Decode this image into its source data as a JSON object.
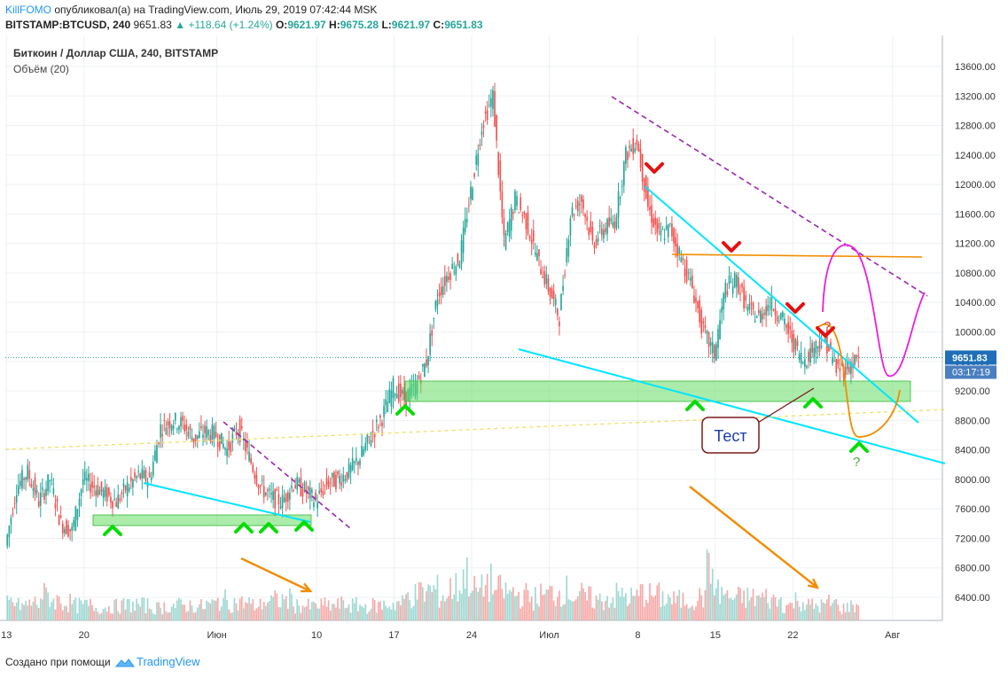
{
  "header": {
    "author": "KillFOMO",
    "published": "опубликовал(а) на TradingView.com, Июль 29, 2019 07:42:44 MSK",
    "symbol": "BITSTAMP:BTCUSD, 240",
    "last": "9651.83",
    "change": "+118.64 (+1.24%)",
    "o_label": "O:",
    "o": "9621.97",
    "h_label": "H:",
    "h": "9675.28",
    "l_label": "L:",
    "l": "9621.97",
    "c_label": "C:",
    "c": "9651.83"
  },
  "legend": {
    "series": "Биткоин / Доллар США, 240, BITSTAMP",
    "volume": "Объём (20)"
  },
  "footer": {
    "created": "Создано при помощи",
    "brand": "TradingView"
  },
  "colors": {
    "up": "#26a69a",
    "down": "#ef5350",
    "price_tag": "#1e6fb8",
    "timer_tag": "#4a7fc0",
    "cyan": "#00e5ff",
    "purple": "#9c27b0",
    "orange": "#f28c00",
    "magenta": "#e91ee0",
    "green_zone": "#66dd66",
    "marker_up": "#00dd00",
    "marker_down": "#e41010"
  },
  "chart_data": {
    "type": "candlestick",
    "symbol": "BITSTAMP:BTCUSD",
    "timeframe": "240",
    "ylim": [
      6000,
      13900
    ],
    "y_ticks": [
      6400,
      6800,
      7200,
      7600,
      8000,
      8400,
      8800,
      9200,
      9600,
      10000,
      10400,
      10800,
      11200,
      11600,
      12000,
      12400,
      12800,
      13200,
      13600
    ],
    "y_tick_labels": [
      "6400.00",
      "6800.00",
      "7200.00",
      "7600.00",
      "8000.00",
      "8400.00",
      "8800.00",
      "9200.00",
      "9600.00",
      "10000.00",
      "10400.00",
      "10800.00",
      "11200.00",
      "11600.00",
      "12000.00",
      "12400.00",
      "12800.00",
      "13200.00",
      "13600.00"
    ],
    "x_ticks": [
      "13",
      "20",
      "Июн",
      "10",
      "17",
      "24",
      "Июл",
      "8",
      "15",
      "22",
      "Авг"
    ],
    "x_tick_days": [
      13,
      20,
      32,
      41,
      48,
      55,
      62,
      70,
      77,
      84,
      93
    ],
    "current_price": 9651.83,
    "current_price_label": "9651.83",
    "timer_label": "03:17:19",
    "price_path": [
      [
        13,
        7100
      ],
      [
        14,
        7900
      ],
      [
        15,
        8100
      ],
      [
        16,
        7700
      ],
      [
        17,
        8000
      ],
      [
        18,
        7400
      ],
      [
        19,
        7300
      ],
      [
        20,
        8000
      ],
      [
        21,
        7900
      ],
      [
        22,
        7800
      ],
      [
        23,
        7700
      ],
      [
        24,
        7900
      ],
      [
        25,
        8050
      ],
      [
        26,
        8000
      ],
      [
        27,
        8700
      ],
      [
        28,
        8800
      ],
      [
        29,
        8750
      ],
      [
        30,
        8550
      ],
      [
        31,
        8650
      ],
      [
        32,
        8600
      ],
      [
        33,
        8400
      ],
      [
        34,
        8700
      ],
      [
        35,
        8300
      ],
      [
        36,
        7900
      ],
      [
        37,
        7750
      ],
      [
        38,
        7700
      ],
      [
        39,
        7950
      ],
      [
        40,
        7850
      ],
      [
        41,
        7700
      ],
      [
        42,
        7950
      ],
      [
        43,
        8000
      ],
      [
        44,
        8100
      ],
      [
        45,
        8300
      ],
      [
        46,
        8600
      ],
      [
        47,
        8850
      ],
      [
        48,
        9250
      ],
      [
        49,
        9100
      ],
      [
        50,
        9250
      ],
      [
        51,
        9600
      ],
      [
        52,
        10500
      ],
      [
        53,
        10800
      ],
      [
        54,
        11000
      ],
      [
        55,
        11900
      ],
      [
        56,
        12800
      ],
      [
        57,
        13200
      ],
      [
        58,
        11200
      ],
      [
        59,
        11800
      ],
      [
        60,
        11500
      ],
      [
        61,
        11000
      ],
      [
        62,
        10600
      ],
      [
        63,
        10200
      ],
      [
        64,
        11600
      ],
      [
        65,
        11800
      ],
      [
        66,
        11200
      ],
      [
        67,
        11400
      ],
      [
        68,
        11500
      ],
      [
        69,
        12400
      ],
      [
        70,
        12600
      ],
      [
        71,
        11700
      ],
      [
        72,
        11300
      ],
      [
        73,
        11400
      ],
      [
        74,
        11000
      ],
      [
        75,
        10600
      ],
      [
        76,
        10000
      ],
      [
        77,
        9700
      ],
      [
        78,
        10600
      ],
      [
        79,
        10700
      ],
      [
        80,
        10300
      ],
      [
        81,
        10200
      ],
      [
        82,
        10400
      ],
      [
        83,
        10200
      ],
      [
        84,
        9900
      ],
      [
        85,
        9600
      ],
      [
        86,
        9800
      ],
      [
        87,
        9900
      ],
      [
        88,
        9500
      ],
      [
        89,
        9520
      ],
      [
        90,
        9650
      ]
    ],
    "volume_max": 1,
    "volume_profile": [
      0.35,
      0.3,
      0.35,
      0.5,
      0.4,
      0.35,
      0.3,
      0.3,
      0.25,
      0.28,
      0.3,
      0.32,
      0.3,
      0.25,
      0.28,
      0.3,
      0.3,
      0.28,
      0.32,
      0.4,
      0.35,
      0.35,
      0.3,
      0.38,
      0.4,
      0.42,
      0.3,
      0.28,
      0.3,
      0.3,
      0.32,
      0.3,
      0.28,
      0.3,
      0.32,
      0.35,
      0.5,
      0.55,
      0.6,
      0.5,
      0.65,
      0.9,
      0.6,
      0.75,
      0.6,
      0.55,
      0.5,
      0.45,
      0.5,
      0.55,
      0.6,
      0.5,
      0.45,
      0.4,
      0.45,
      0.5,
      0.45,
      0.55,
      0.5,
      0.45,
      0.4,
      0.4,
      0.45,
      0.95,
      0.55,
      0.45,
      0.45,
      0.45,
      0.45,
      0.4,
      0.3,
      0.4,
      0.3,
      0.3,
      0.35,
      0.25,
      0.3,
      0.35
    ]
  },
  "annotations": {
    "callout_text": "Тест",
    "question_marks": [
      "?",
      "?"
    ]
  }
}
